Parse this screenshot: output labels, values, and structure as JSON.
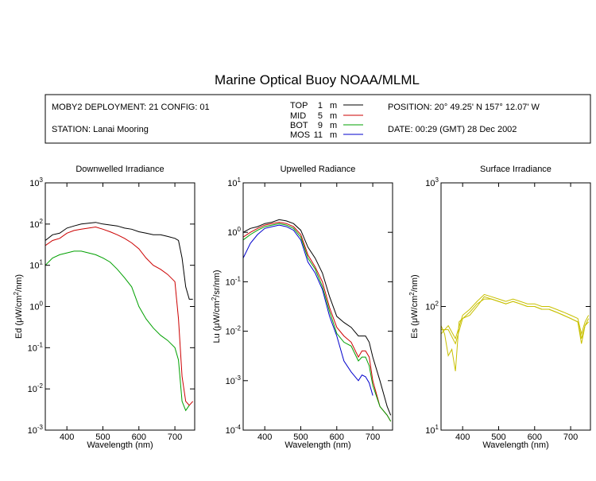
{
  "page_title": "Marine Optical Buoy NOAA/MLML",
  "info": {
    "deployment": "MOBY2 DEPLOYMENT: 21 CONFIG: 01",
    "station": "STATION: Lanai Mooring",
    "position": "POSITION: 20° 49.25' N   157° 12.07' W",
    "date": "DATE: 00:29 (GMT) 28 Dec 2002",
    "legend": [
      {
        "name": "TOP",
        "depth": "1",
        "unit": "m",
        "color": "#000000"
      },
      {
        "name": "MID",
        "depth": "5",
        "unit": "m",
        "color": "#cc0000"
      },
      {
        "name": "BOT",
        "depth": "9",
        "unit": "m",
        "color": "#00a000"
      },
      {
        "name": "MOS",
        "depth": "11",
        "unit": "m",
        "color": "#0000cc"
      }
    ]
  },
  "chart_data": [
    {
      "type": "line",
      "title": "Downwelled Irradiance",
      "xlabel": "Wavelength (nm)",
      "ylabel": "Ed (μW/cm²/nm)",
      "yscale": "log",
      "xlim": [
        340,
        755
      ],
      "ylim": [
        0.001,
        1000
      ],
      "xticks": [
        "400",
        "500",
        "600",
        "700"
      ],
      "yticks": [
        "10^-3",
        "10^-2",
        "10^-1",
        "10^0",
        "10^1",
        "10^2",
        "10^3"
      ],
      "series": [
        {
          "name": "TOP",
          "color": "#000000",
          "x": [
            340,
            360,
            380,
            400,
            420,
            440,
            460,
            480,
            500,
            520,
            540,
            560,
            580,
            600,
            620,
            640,
            660,
            680,
            700,
            710,
            720,
            730,
            740,
            750
          ],
          "y": [
            40,
            55,
            60,
            80,
            90,
            100,
            105,
            110,
            100,
            95,
            90,
            80,
            75,
            65,
            60,
            55,
            55,
            50,
            45,
            40,
            15,
            3,
            1.5,
            1.5
          ]
        },
        {
          "name": "MID",
          "color": "#cc0000",
          "x": [
            340,
            360,
            380,
            400,
            420,
            440,
            460,
            480,
            500,
            520,
            540,
            560,
            580,
            600,
            620,
            640,
            660,
            680,
            700,
            710,
            720,
            730,
            740,
            750
          ],
          "y": [
            30,
            40,
            45,
            60,
            70,
            75,
            80,
            85,
            75,
            65,
            55,
            45,
            35,
            25,
            15,
            10,
            8,
            6,
            4,
            0.5,
            0.02,
            0.005,
            0.004,
            0.005
          ]
        },
        {
          "name": "BOT",
          "color": "#00a000",
          "x": [
            340,
            360,
            380,
            400,
            420,
            440,
            460,
            480,
            500,
            520,
            540,
            560,
            580,
            600,
            620,
            640,
            660,
            680,
            700,
            710,
            720,
            730,
            740
          ],
          "y": [
            10,
            15,
            18,
            20,
            22,
            22,
            20,
            18,
            15,
            12,
            8,
            5,
            3,
            1,
            0.5,
            0.3,
            0.2,
            0.15,
            0.1,
            0.05,
            0.005,
            0.003,
            0.004
          ]
        }
      ]
    },
    {
      "type": "line",
      "title": "Upwelled Radiance",
      "xlabel": "Wavelength (nm)",
      "ylabel": "Lu (μW/cm²/sr/nm)",
      "yscale": "log",
      "xlim": [
        340,
        755
      ],
      "ylim": [
        0.0001,
        10
      ],
      "xticks": [
        "400",
        "500",
        "600",
        "700"
      ],
      "yticks": [
        "10^-4",
        "10^-3",
        "10^-2",
        "10^-1",
        "10^0",
        "10^1"
      ],
      "series": [
        {
          "name": "TOP",
          "color": "#000000",
          "x": [
            340,
            360,
            380,
            400,
            420,
            440,
            460,
            480,
            500,
            520,
            540,
            560,
            580,
            600,
            620,
            640,
            660,
            670,
            680,
            690,
            700,
            720,
            740,
            750
          ],
          "y": [
            1.0,
            1.2,
            1.3,
            1.5,
            1.6,
            1.8,
            1.7,
            1.5,
            1.1,
            0.5,
            0.3,
            0.15,
            0.05,
            0.02,
            0.015,
            0.012,
            0.008,
            0.008,
            0.008,
            0.006,
            0.003,
            0.001,
            0.0003,
            0.0002
          ]
        },
        {
          "name": "MID",
          "color": "#cc0000",
          "x": [
            340,
            360,
            380,
            400,
            420,
            440,
            460,
            480,
            500,
            520,
            540,
            560,
            580,
            600,
            620,
            640,
            660,
            670,
            680,
            690,
            700,
            720,
            740,
            750
          ],
          "y": [
            0.8,
            1.0,
            1.2,
            1.4,
            1.5,
            1.6,
            1.5,
            1.3,
            0.9,
            0.35,
            0.2,
            0.1,
            0.03,
            0.012,
            0.008,
            0.006,
            0.003,
            0.004,
            0.004,
            0.003,
            0.001,
            0.0003,
            0.0002,
            0.00015
          ]
        },
        {
          "name": "BOT",
          "color": "#00a000",
          "x": [
            340,
            360,
            380,
            400,
            420,
            440,
            460,
            480,
            500,
            520,
            540,
            560,
            580,
            600,
            620,
            640,
            660,
            670,
            680,
            690,
            700,
            720,
            740,
            750
          ],
          "y": [
            0.7,
            0.9,
            1.1,
            1.3,
            1.4,
            1.5,
            1.4,
            1.2,
            0.8,
            0.3,
            0.18,
            0.08,
            0.025,
            0.009,
            0.006,
            0.005,
            0.0025,
            0.003,
            0.003,
            0.002,
            0.0008,
            0.0003,
            0.0002,
            0.00015
          ]
        },
        {
          "name": "MOS",
          "color": "#0000cc",
          "x": [
            340,
            360,
            380,
            400,
            420,
            440,
            460,
            480,
            500,
            520,
            540,
            560,
            580,
            600,
            620,
            640,
            660,
            670,
            680,
            690,
            700
          ],
          "y": [
            0.3,
            0.6,
            0.9,
            1.2,
            1.3,
            1.4,
            1.3,
            1.1,
            0.7,
            0.25,
            0.15,
            0.07,
            0.02,
            0.008,
            0.0025,
            0.0015,
            0.001,
            0.0013,
            0.0012,
            0.0009,
            0.0005
          ]
        }
      ]
    },
    {
      "type": "line",
      "title": "Surface Irradiance",
      "xlabel": "Wavelength (nm)",
      "ylabel": "Es (μW/cm²/nm)",
      "yscale": "log",
      "xlim": [
        340,
        755
      ],
      "ylim": [
        10,
        1000
      ],
      "xticks": [
        "400",
        "500",
        "600",
        "700"
      ],
      "yticks": [
        "10^1",
        "10^2",
        "10^3"
      ],
      "series": [
        {
          "name": "",
          "color": "#c8c000",
          "x": [
            340,
            350,
            360,
            370,
            380,
            390,
            400,
            420,
            440,
            460,
            480,
            500,
            520,
            540,
            560,
            580,
            600,
            620,
            640,
            660,
            680,
            700,
            720,
            730,
            740,
            750
          ],
          "y": [
            70,
            60,
            40,
            45,
            30,
            75,
            80,
            85,
            100,
            120,
            115,
            110,
            105,
            110,
            105,
            100,
            100,
            95,
            95,
            90,
            85,
            80,
            75,
            50,
            70,
            75
          ]
        },
        {
          "name": "",
          "color": "#c8c000",
          "x": [
            340,
            360,
            380,
            400,
            420,
            440,
            460,
            480,
            500,
            520,
            540,
            560,
            580,
            600,
            620,
            640,
            660,
            680,
            700,
            720,
            730,
            740,
            750
          ],
          "y": [
            60,
            70,
            55,
            85,
            95,
            110,
            125,
            120,
            115,
            110,
            115,
            110,
            105,
            105,
            100,
            100,
            95,
            90,
            85,
            80,
            60,
            75,
            85
          ]
        },
        {
          "name": "",
          "color": "#c8c000",
          "x": [
            340,
            360,
            380,
            400,
            420,
            440,
            460,
            480,
            500,
            520,
            540,
            560,
            580,
            600,
            620,
            640,
            660,
            680,
            700,
            720,
            730,
            740,
            750
          ],
          "y": [
            65,
            65,
            50,
            80,
            90,
            105,
            115,
            115,
            110,
            105,
            110,
            105,
            100,
            100,
            95,
            95,
            90,
            85,
            80,
            75,
            55,
            70,
            80
          ]
        }
      ]
    }
  ]
}
